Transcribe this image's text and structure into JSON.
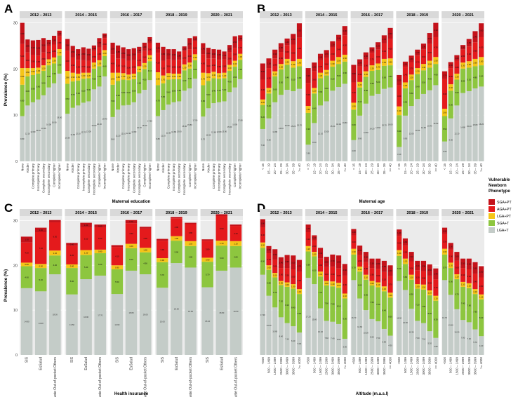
{
  "legend": {
    "title_lines": [
      "Vulnerable",
      "Newborn",
      "Phenotype"
    ],
    "items": [
      {
        "label": "SGA+PT",
        "color": "#c4121a"
      },
      {
        "label": "AGA+PT",
        "color": "#e41a1c"
      },
      {
        "label": "LGA+PT",
        "color": "#f5c518"
      },
      {
        "label": "SGA+T",
        "color": "#8dc63f"
      },
      {
        "label": "LGA+T",
        "color": "#c4ccc8"
      }
    ]
  },
  "chart_data": [
    {
      "type": "bar",
      "stacked": true,
      "panel": "A",
      "xlabel": "Maternal education",
      "ylabel": "Prevalence (%)",
      "ylim": [
        0,
        31
      ],
      "y_ticks": [
        0,
        10,
        20,
        30
      ],
      "facets": [
        "2012 – 2013",
        "2014 – 2015",
        "2016 – 2017",
        "2018 – 2019",
        "2020 – 2021"
      ],
      "categories": [
        "None",
        "Kinder",
        "Complete primary",
        "Incomplete primary",
        "Complete secondary",
        "Incomplete secondary",
        "Complete higher",
        "Incomplete higher"
      ],
      "values": [
        [
          [
            9.8,
            6.8,
            3.6,
            5.2,
            4.6
          ],
          [
            12.1,
            6.3,
            1.8,
            3.4,
            2.8
          ],
          [
            12.8,
            5.9,
            1.5,
            2.9,
            3.1
          ],
          [
            13.4,
            5.6,
            1.3,
            2.6,
            3.4
          ],
          [
            14.3,
            5.3,
            1.2,
            2.8,
            3.1
          ],
          [
            16.0,
            4.8,
            1.3,
            2.9,
            1.3
          ],
          [
            16.9,
            4.3,
            1.3,
            2.8,
            1.9
          ],
          [
            19.0,
            3.9,
            1.4,
            2.8,
            1.2
          ]
        ],
        [
          [
            10.3,
            6.5,
            2.8,
            4.3,
            2.6
          ],
          [
            11.6,
            5.7,
            1.9,
            3.3,
            2.5
          ],
          [
            12.1,
            5.4,
            1.5,
            3.0,
            2.3
          ],
          [
            12.7,
            5.2,
            1.3,
            2.7,
            2.8
          ],
          [
            13.0,
            5.0,
            1.2,
            2.6,
            2.6
          ],
          [
            15.6,
            4.5,
            1.3,
            2.5,
            1.2
          ],
          [
            16.2,
            4.4,
            1.3,
            2.8,
            2.0
          ],
          [
            18.4,
            4.4,
            1.3,
            2.6,
            1.0
          ]
        ],
        [
          [
            9.6,
            7.0,
            2.6,
            4.0,
            2.5
          ],
          [
            11.2,
            6.2,
            1.8,
            3.1,
            2.8
          ],
          [
            12.1,
            5.6,
            1.4,
            3.1,
            2.5
          ],
          [
            12.2,
            5.4,
            1.2,
            3.0,
            2.5
          ],
          [
            12.8,
            5.0,
            1.2,
            2.9,
            2.6
          ],
          [
            14.7,
            4.6,
            1.3,
            2.7,
            1.5
          ],
          [
            15.5,
            4.5,
            1.3,
            2.6,
            1.8
          ],
          [
            17.6,
            4.1,
            1.3,
            2.6,
            1.3
          ]
        ],
        [
          [
            9.8,
            6.7,
            2.8,
            4.2,
            2.2
          ],
          [
            11.1,
            5.8,
            1.7,
            3.2,
            3.0
          ],
          [
            12.3,
            5.4,
            1.4,
            3.0,
            2.2
          ],
          [
            12.8,
            5.0,
            1.2,
            2.9,
            2.4
          ],
          [
            13.0,
            4.8,
            1.2,
            3.0,
            1.8
          ],
          [
            15.3,
            4.4,
            1.3,
            2.9,
            1.0
          ],
          [
            15.8,
            4.3,
            1.3,
            2.9,
            2.4
          ],
          [
            17.9,
            4.0,
            1.3,
            2.8,
            1.1
          ]
        ],
        [
          [
            9.7,
            6.8,
            2.7,
            4.0,
            2.4
          ],
          [
            11.5,
            5.9,
            1.7,
            3.2,
            2.3
          ],
          [
            12.6,
            5.4,
            1.4,
            2.9,
            2.0
          ],
          [
            12.8,
            5.1,
            1.2,
            2.9,
            2.2
          ],
          [
            13.0,
            5.0,
            1.2,
            2.9,
            1.7
          ],
          [
            15.0,
            4.6,
            1.3,
            2.8,
            1.5
          ],
          [
            16.0,
            4.5,
            1.3,
            2.8,
            2.5
          ],
          [
            17.8,
            4.2,
            1.3,
            2.7,
            1.3
          ]
        ]
      ],
      "series_order": [
        "LGA+T",
        "SGA+T",
        "LGA+PT",
        "AGA+PT",
        "SGA+PT"
      ]
    },
    {
      "type": "bar",
      "stacked": true,
      "panel": "B",
      "xlabel": "Maternal age",
      "ylabel": "",
      "ylim": [
        0,
        31
      ],
      "facets": [
        "2012 – 2013",
        "2014 – 2015",
        "2016 – 2017",
        "2018 – 2019",
        "2020 – 2021"
      ],
      "categories": [
        "< 15",
        "15 – 19",
        "20 – 24",
        "25 – 29",
        "30 – 34",
        "35 – 39",
        ">= 40"
      ],
      "values": [
        [
          [
            7.0,
            5.2,
            1.2,
            4.3,
            3.5
          ],
          [
            9.3,
            5.4,
            1.2,
            4.3,
            2.1
          ],
          [
            12.8,
            5.6,
            1.1,
            2.8,
            1.9
          ],
          [
            14.4,
            5.5,
            1.2,
            2.6,
            1.9
          ],
          [
            15.5,
            5.4,
            1.3,
            3.0,
            1.4
          ],
          [
            15.2,
            5.1,
            1.4,
            3.6,
            2.3
          ],
          [
            15.7,
            4.9,
            1.6,
            4.6,
            3.1
          ]
        ],
        [
          [
            3.6,
            6.9,
            1.5,
            5.0,
            3.2
          ],
          [
            8.3,
            6.4,
            1.2,
            3.6,
            1.9
          ],
          [
            12.1,
            5.9,
            1.2,
            2.7,
            1.4
          ],
          [
            13.0,
            5.6,
            1.2,
            2.6,
            1.7
          ],
          [
            15.3,
            5.2,
            1.3,
            2.9,
            1.3
          ],
          [
            16.1,
            5.0,
            1.5,
            3.4,
            1.4
          ],
          [
            16.8,
            4.8,
            1.5,
            4.2,
            2.0
          ]
        ],
        [
          [
            4.6,
            6.6,
            1.5,
            4.4,
            3.8
          ],
          [
            9.9,
            6.1,
            1.2,
            3.4,
            1.5
          ],
          [
            12.5,
            5.8,
            1.2,
            2.6,
            1.5
          ],
          [
            14.2,
            5.4,
            1.2,
            2.7,
            1.2
          ],
          [
            14.6,
            5.2,
            1.4,
            3.0,
            1.6
          ],
          [
            15.7,
            5.0,
            1.5,
            3.4,
            1.7
          ],
          [
            16.0,
            4.8,
            1.5,
            4.2,
            2.4
          ]
        ],
        [
          [
            3.1,
            6.9,
            1.9,
            4.6,
            2.2
          ],
          [
            9.9,
            5.9,
            1.3,
            3.4,
            1.1
          ],
          [
            12.0,
            5.6,
            1.2,
            2.7,
            1.4
          ],
          [
            13.5,
            5.4,
            1.3,
            2.7,
            1.3
          ],
          [
            14.6,
            5.1,
            1.4,
            3.1,
            1.3
          ],
          [
            15.4,
            4.9,
            1.5,
            3.6,
            2.4
          ],
          [
            16.5,
            4.6,
            1.5,
            4.3,
            3.1
          ]
        ],
        [
          [
            4.3,
            5.5,
            1.6,
            6.4,
            1.7
          ],
          [
            9.3,
            6.0,
            1.4,
            3.5,
            1.3
          ],
          [
            12.1,
            5.6,
            1.3,
            2.8,
            1.2
          ],
          [
            14.8,
            5.3,
            1.3,
            2.8,
            1.0
          ],
          [
            15.2,
            5.1,
            1.4,
            3.2,
            1.6
          ],
          [
            15.8,
            4.8,
            1.6,
            3.6,
            2.4
          ],
          [
            16.2,
            4.6,
            1.8,
            4.3,
            3.0
          ]
        ]
      ],
      "series_order": [
        "LGA+T",
        "SGA+T",
        "LGA+PT",
        "AGA+PT",
        "SGA+PT"
      ]
    },
    {
      "type": "bar",
      "stacked": true,
      "panel": "C",
      "xlabel": "Health insurance",
      "ylabel": "Prevalence (%)",
      "ylim": [
        0,
        31
      ],
      "y_ticks": [
        0,
        10,
        20,
        30
      ],
      "facets": [
        "2012 – 2013",
        "2014 – 2015",
        "2016 – 2017",
        "2018 – 2019",
        "2020 – 2021"
      ],
      "categories": [
        "SIS",
        "EsSalud",
        "Private Out-of-pocket Others"
      ],
      "values": [
        [
          [
            14.9,
            4.9,
            0.8,
            4.5,
            1.3
          ],
          [
            14.2,
            5.2,
            0.9,
            7.1,
            1.0
          ],
          [
            18.0,
            4.2,
            1.1,
            6.3,
            0.5
          ]
        ],
        [
          [
            13.5,
            5.9,
            0.8,
            4.2,
            0.6
          ],
          [
            16.9,
            5.4,
            1.1,
            5.1,
            1.0
          ],
          [
            17.7,
            5.0,
            0.8,
            5.0,
            0.6
          ]
        ],
        [
          [
            13.6,
            5.5,
            0.9,
            4.1,
            0.4
          ],
          [
            18.8,
            5.0,
            1.0,
            4.6,
            0.7
          ],
          [
            18.0,
            4.9,
            1.0,
            4.3,
            0.4
          ]
        ],
        [
          [
            15.0,
            5.7,
            0.9,
            3.9,
            0.4
          ],
          [
            20.5,
            5.0,
            1.0,
            4.0,
            0.3
          ],
          [
            19.5,
            4.8,
            1.1,
            3.8,
            0.3
          ]
        ],
        [
          [
            15.1,
            5.7,
            0.9,
            3.8,
            0.3
          ],
          [
            18.8,
            5.6,
            1.1,
            5.5,
            0.4
          ],
          [
            19.5,
            4.8,
            1.1,
            3.4,
            0.3
          ]
        ]
      ],
      "series_order": [
        "LGA+T",
        "SGA+T",
        "LGA+PT",
        "AGA+PT",
        "SGA+PT"
      ]
    },
    {
      "type": "bar",
      "stacked": true,
      "panel": "D",
      "xlabel": "Altitude (m.a.s.l)",
      "ylabel": "",
      "ylim": [
        0,
        31
      ],
      "facets": [
        "2012 – 2013",
        "2014 – 2015",
        "2016 – 2017",
        "2018 – 2019",
        "2020 – 2021"
      ],
      "categories": [
        "<500",
        "500 – 1499",
        "1500 – 2499",
        "2500 – 2999",
        "3000 – 3499",
        "3500 – 3999",
        ">= 4000"
      ],
      "values": [
        [
          [
            17.9,
            6.0,
            1.2,
            3.4,
            1.8
          ],
          [
            13.2,
            5.8,
            1.0,
            2.7,
            1.6
          ],
          [
            10.6,
            6.7,
            1.0,
            3.0,
            2.3
          ],
          [
            8.4,
            7.2,
            0.9,
            2.9,
            2.4
          ],
          [
            7.1,
            8.1,
            1.0,
            3.2,
            2.9
          ],
          [
            6.4,
            8.4,
            1.0,
            3.3,
            3.1
          ],
          [
            5.0,
            8.6,
            1.1,
            3.8,
            2.7
          ]
        ],
        [
          [
            17.2,
            5.9,
            1.2,
            3.1,
            1.7
          ],
          [
            15.8,
            6.2,
            1.0,
            2.6,
            1.1
          ],
          [
            10.4,
            7.1,
            1.1,
            2.9,
            2.4
          ],
          [
            7.6,
            7.9,
            1.0,
            3.1,
            2.3
          ],
          [
            7.4,
            7.9,
            1.1,
            3.3,
            2.7
          ],
          [
            6.9,
            8.1,
            1.1,
            3.2,
            2.9
          ],
          [
            3.6,
            9.0,
            1.1,
            4.0,
            2.6
          ]
        ],
        [
          [
            16.7,
            5.7,
            1.3,
            3.0,
            1.4
          ],
          [
            12.6,
            6.0,
            1.1,
            2.6,
            2.1
          ],
          [
            10.0,
            6.8,
            1.1,
            2.8,
            2.3
          ],
          [
            8.0,
            7.5,
            1.0,
            2.9,
            2.1
          ],
          [
            7.5,
            7.6,
            1.1,
            3.0,
            2.3
          ],
          [
            5.8,
            8.4,
            1.1,
            3.2,
            2.5
          ],
          [
            4.3,
            8.5,
            1.1,
            3.7,
            2.4
          ]
        ],
        [
          [
            16.5,
            5.6,
            1.3,
            3.2,
            1.4
          ],
          [
            14.5,
            5.8,
            1.2,
            2.9,
            1.6
          ],
          [
            10.3,
            6.5,
            1.1,
            3.0,
            2.1
          ],
          [
            7.6,
            7.2,
            1.0,
            3.1,
            2.1
          ],
          [
            7.1,
            7.5,
            1.1,
            3.0,
            2.3
          ],
          [
            5.3,
            8.0,
            1.1,
            3.3,
            2.5
          ],
          [
            3.8,
            8.3,
            1.1,
            3.7,
            2.4
          ]
        ],
        [
          [
            16.7,
            5.7,
            1.3,
            3.3,
            1.4
          ],
          [
            13.4,
            6.0,
            1.2,
            2.9,
            1.5
          ],
          [
            10.2,
            6.7,
            1.1,
            3.0,
            2.0
          ],
          [
            7.8,
            7.4,
            1.1,
            3.1,
            2.1
          ],
          [
            7.3,
            7.6,
            1.1,
            3.1,
            2.4
          ],
          [
            5.7,
            7.9,
            1.1,
            3.4,
            2.6
          ],
          [
            4.2,
            8.2,
            1.1,
            3.8,
            2.5
          ]
        ]
      ],
      "series_order": [
        "LGA+T",
        "SGA+T",
        "LGA+PT",
        "AGA+PT",
        "SGA+PT"
      ]
    }
  ]
}
